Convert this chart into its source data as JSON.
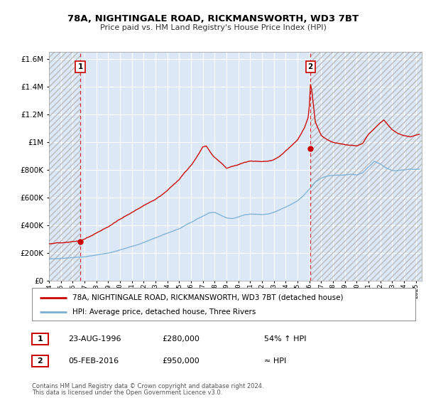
{
  "title": "78A, NIGHTINGALE ROAD, RICKMANSWORTH, WD3 7BT",
  "subtitle": "Price paid vs. HM Land Registry's House Price Index (HPI)",
  "legend_line1": "78A, NIGHTINGALE ROAD, RICKMANSWORTH, WD3 7BT (detached house)",
  "legend_line2": "HPI: Average price, detached house, Three Rivers",
  "transaction1_date": "23-AUG-1996",
  "transaction1_price": "£280,000",
  "transaction1_hpi": "54% ↑ HPI",
  "transaction2_date": "05-FEB-2016",
  "transaction2_price": "£950,000",
  "transaction2_hpi": "≈ HPI",
  "footer1": "Contains HM Land Registry data © Crown copyright and database right 2024.",
  "footer2": "This data is licensed under the Open Government Licence v3.0.",
  "red_color": "#cc0000",
  "blue_color": "#7aafd4",
  "background_color": "#ffffff",
  "plot_bg_color": "#dce8f5",
  "grid_color": "#ffffff",
  "ylim": [
    0,
    1650000
  ],
  "xlim_start": 1994.0,
  "xlim_end": 2025.5,
  "transaction1_x": 1996.64,
  "transaction1_y": 280000,
  "transaction2_x": 2016.09,
  "transaction2_y": 950000
}
